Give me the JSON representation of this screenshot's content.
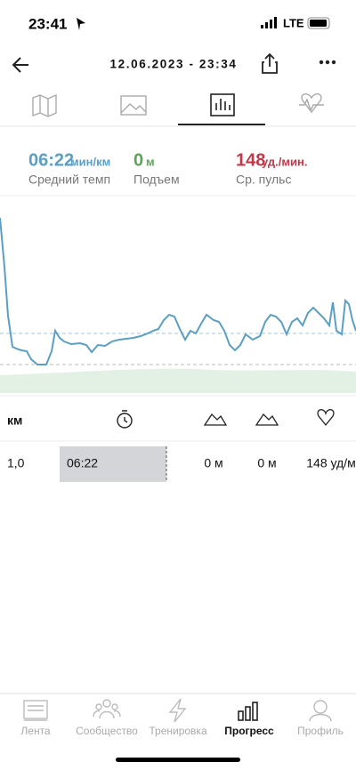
{
  "status_bar": {
    "time": "23:41",
    "network": "LTE"
  },
  "header": {
    "title": "12.06.2023 - 23:34"
  },
  "stats": [
    {
      "value": "06:22",
      "unit": "мин/км",
      "label": "Средний темп"
    },
    {
      "value": "0",
      "unit": "м",
      "label": "Подъем"
    },
    {
      "value": "148",
      "unit": "уд./мин.",
      "label": "Ср. пульс"
    }
  ],
  "table": {
    "header": [
      "км"
    ],
    "rows": [
      [
        "1,0",
        "06:22",
        "0 м",
        "0 м",
        "148 уд/м"
      ]
    ]
  },
  "tab_bar": [
    "Лента",
    "Сообщество",
    "Тренировка",
    "Прогресс",
    "Профиль"
  ]
}
